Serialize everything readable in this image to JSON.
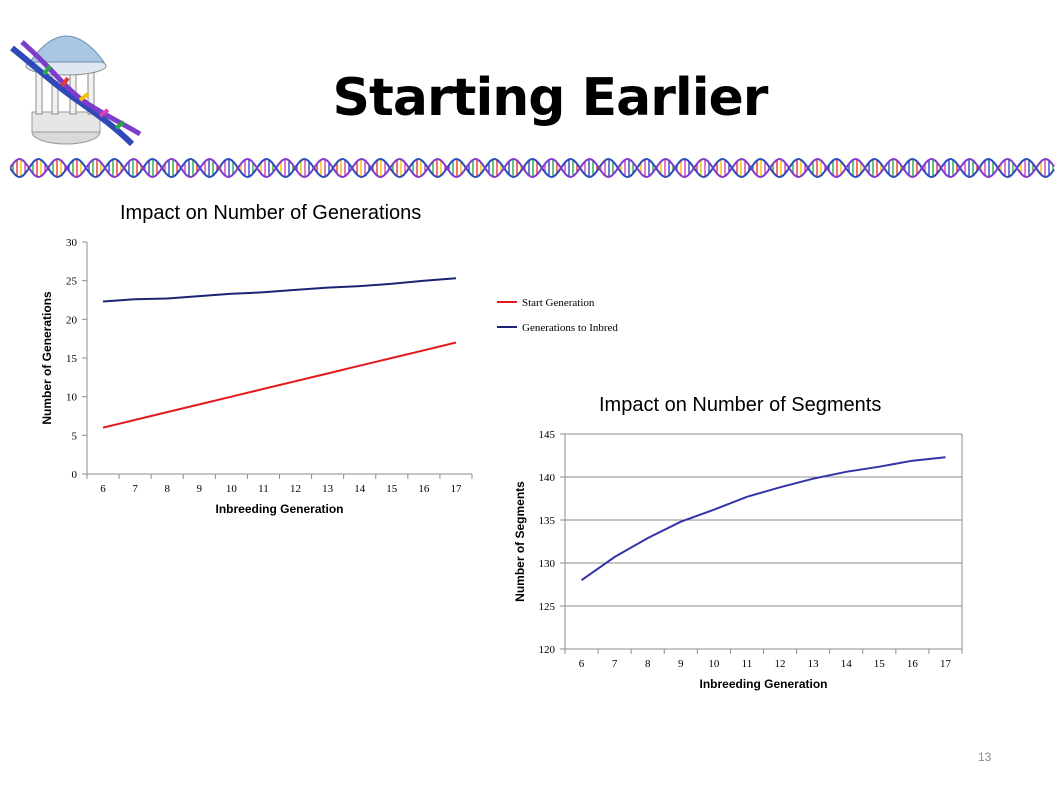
{
  "slide": {
    "title": "Starting Earlier",
    "page_number": "13"
  },
  "icons": [
    "old-well-dna-logo",
    "dna-strand-divider"
  ],
  "colors": {
    "start_generation": "#e31a1c",
    "generations_to_inbred": "#1a2472",
    "segments": "#3333aa"
  },
  "chart_data": [
    {
      "type": "line",
      "title": "Impact on Number of Generations",
      "xlabel": "Inbreeding Generation",
      "ylabel": "Number of Generations",
      "x": [
        6,
        7,
        8,
        9,
        10,
        11,
        12,
        13,
        14,
        15,
        16,
        17
      ],
      "x_tick_labels": [
        "6",
        "7",
        "8",
        "9",
        "10",
        "11",
        "12",
        "13",
        "14",
        "15",
        "16",
        "17"
      ],
      "ylim": [
        0,
        30
      ],
      "y_ticks": [
        0,
        5,
        10,
        15,
        20,
        25,
        30
      ],
      "grid": false,
      "legend": "right",
      "series": [
        {
          "name": "Start Generation",
          "values": [
            6,
            7,
            8,
            9,
            10,
            11,
            12,
            13,
            14,
            15,
            16,
            17
          ]
        },
        {
          "name": "Generations to Inbred",
          "values": [
            22.3,
            22.6,
            22.7,
            23.0,
            23.3,
            23.5,
            23.8,
            24.1,
            24.3,
            24.6,
            25.0,
            25.3
          ]
        }
      ]
    },
    {
      "type": "line",
      "title": "Impact on Number of Segments",
      "xlabel": "Inbreeding Generation",
      "ylabel": "Number of Segments",
      "x": [
        6,
        7,
        8,
        9,
        10,
        11,
        12,
        13,
        14,
        15,
        16,
        17
      ],
      "x_tick_labels": [
        "6",
        "7",
        "8",
        "9",
        "10",
        "11",
        "12",
        "13",
        "14",
        "15",
        "16",
        "17"
      ],
      "ylim": [
        120,
        145
      ],
      "y_ticks": [
        120,
        125,
        130,
        135,
        140,
        145
      ],
      "grid": true,
      "series": [
        {
          "values": [
            128.0,
            130.7,
            132.9,
            134.8,
            136.2,
            137.7,
            138.8,
            139.8,
            140.6,
            141.2,
            141.9,
            142.3
          ]
        }
      ]
    }
  ]
}
